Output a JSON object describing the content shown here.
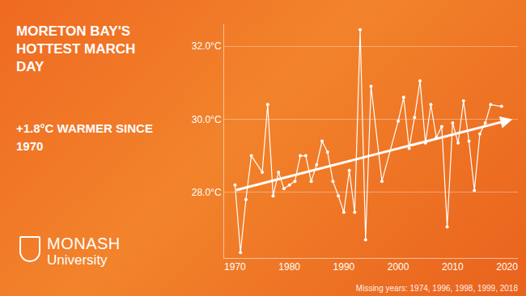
{
  "chart_data": {
    "type": "line",
    "title": "MORETON BAY'S HOTTEST MARCH DAY",
    "subtitle": "+1.8°C WARMER SINCE 1970",
    "brand": "MONASH",
    "brand_sub": "University",
    "note": "Missing years: 1974, 1996, 1998, 1999, 2018",
    "x": [
      1970,
      1971,
      1972,
      1973,
      1975,
      1976,
      1977,
      1978,
      1979,
      1980,
      1981,
      1982,
      1983,
      1984,
      1985,
      1986,
      1987,
      1988,
      1989,
      1990,
      1991,
      1992,
      1993,
      1994,
      1995,
      1997,
      2000,
      2001,
      2002,
      2003,
      2004,
      2005,
      2006,
      2007,
      2008,
      2009,
      2010,
      2011,
      2012,
      2013,
      2014,
      2015,
      2016,
      2017,
      2019
    ],
    "values": [
      28.2,
      26.35,
      27.8,
      29.0,
      28.55,
      30.4,
      27.9,
      28.55,
      28.1,
      28.2,
      28.3,
      29.0,
      29.0,
      28.3,
      28.75,
      29.4,
      29.1,
      28.3,
      27.9,
      27.45,
      28.6,
      27.45,
      32.45,
      26.7,
      30.9,
      28.3,
      29.95,
      30.6,
      29.2,
      30.05,
      31.05,
      29.35,
      30.4,
      29.5,
      29.8,
      27.05,
      29.9,
      29.35,
      30.5,
      29.4,
      28.05,
      29.6,
      29.9,
      30.4,
      30.35
    ],
    "color": "#ffffff",
    "marker": "circle",
    "trend": {
      "x": [
        1970,
        2021
      ],
      "values": [
        28.05,
        30.0
      ]
    },
    "xlim": [
      1968,
      2022
    ],
    "xticks": [
      1970,
      1980,
      1990,
      2000,
      2010,
      2020
    ],
    "ylim": [
      26.2,
      32.6
    ],
    "yticks": [
      {
        "value": 28,
        "label": "28.0°C"
      },
      {
        "value": 30,
        "label": "30.0°C"
      },
      {
        "value": 32,
        "label": "32.0°C"
      }
    ],
    "grid": true
  }
}
